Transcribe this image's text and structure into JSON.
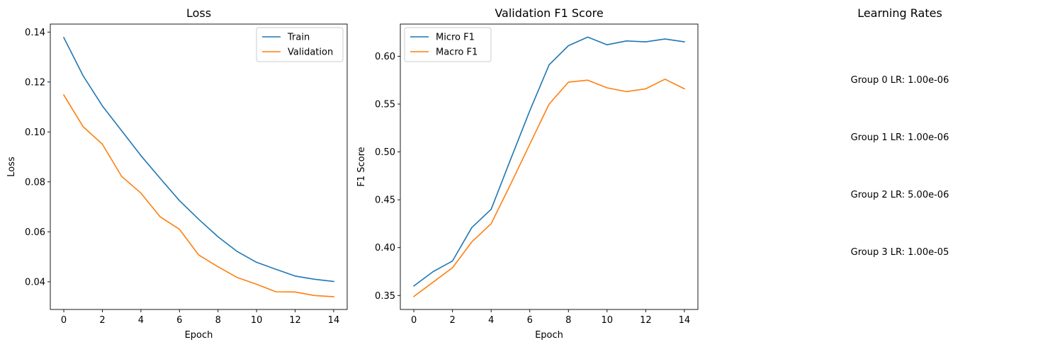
{
  "chart_data": [
    {
      "type": "line",
      "title": "Loss",
      "xlabel": "Epoch",
      "ylabel": "Loss",
      "x": [
        0,
        1,
        2,
        3,
        4,
        5,
        6,
        7,
        8,
        9,
        10,
        11,
        12,
        13,
        14
      ],
      "xticks": [
        0,
        2,
        4,
        6,
        8,
        10,
        12,
        14
      ],
      "yticks": [
        0.04,
        0.06,
        0.08,
        0.1,
        0.12,
        0.14
      ],
      "ytick_labels": [
        "0.04",
        "0.06",
        "0.08",
        "0.10",
        "0.12",
        "0.14"
      ],
      "xlim": [
        -0.7,
        14.7
      ],
      "ylim": [
        0.0289,
        0.1432
      ],
      "legend_loc": "upper right",
      "series": [
        {
          "name": "Train",
          "color": "#1f77b4",
          "values": [
            0.1378,
            0.1225,
            0.1104,
            0.1005,
            0.0905,
            0.0814,
            0.0725,
            0.065,
            0.058,
            0.0521,
            0.0478,
            0.045,
            0.0423,
            0.041,
            0.0401
          ]
        },
        {
          "name": "Validation",
          "color": "#ff7f0e",
          "values": [
            0.1148,
            0.1021,
            0.0951,
            0.0822,
            0.0755,
            0.066,
            0.061,
            0.0507,
            0.046,
            0.0417,
            0.039,
            0.036,
            0.0359,
            0.0345,
            0.034
          ]
        }
      ]
    },
    {
      "type": "line",
      "title": "Validation F1 Score",
      "xlabel": "Epoch",
      "ylabel": "F1 Score",
      "x": [
        0,
        1,
        2,
        3,
        4,
        5,
        6,
        7,
        8,
        9,
        10,
        11,
        12,
        13,
        14
      ],
      "xticks": [
        0,
        2,
        4,
        6,
        8,
        10,
        12,
        14
      ],
      "yticks": [
        0.35,
        0.4,
        0.45,
        0.5,
        0.55,
        0.6
      ],
      "ytick_labels": [
        "0.35",
        "0.40",
        "0.45",
        "0.50",
        "0.55",
        "0.60"
      ],
      "xlim": [
        -0.7,
        14.7
      ],
      "ylim": [
        0.3354,
        0.6336
      ],
      "legend_loc": "upper left",
      "series": [
        {
          "name": "Micro F1",
          "color": "#1f77b4",
          "values": [
            0.36,
            0.375,
            0.386,
            0.421,
            0.44,
            0.492,
            0.543,
            0.591,
            0.611,
            0.62,
            0.612,
            0.616,
            0.615,
            0.618,
            0.615
          ]
        },
        {
          "name": "Macro F1",
          "color": "#ff7f0e",
          "values": [
            0.349,
            0.364,
            0.379,
            0.406,
            0.425,
            0.466,
            0.508,
            0.55,
            0.573,
            0.575,
            0.567,
            0.563,
            0.566,
            0.576,
            0.566
          ]
        }
      ]
    }
  ],
  "learning_rates": {
    "title": "Learning Rates",
    "lines": [
      "Group 0 LR: 1.00e-06",
      "Group 1 LR: 1.00e-06",
      "Group 2 LR: 5.00e-06",
      "Group 3 LR: 1.00e-05"
    ]
  }
}
